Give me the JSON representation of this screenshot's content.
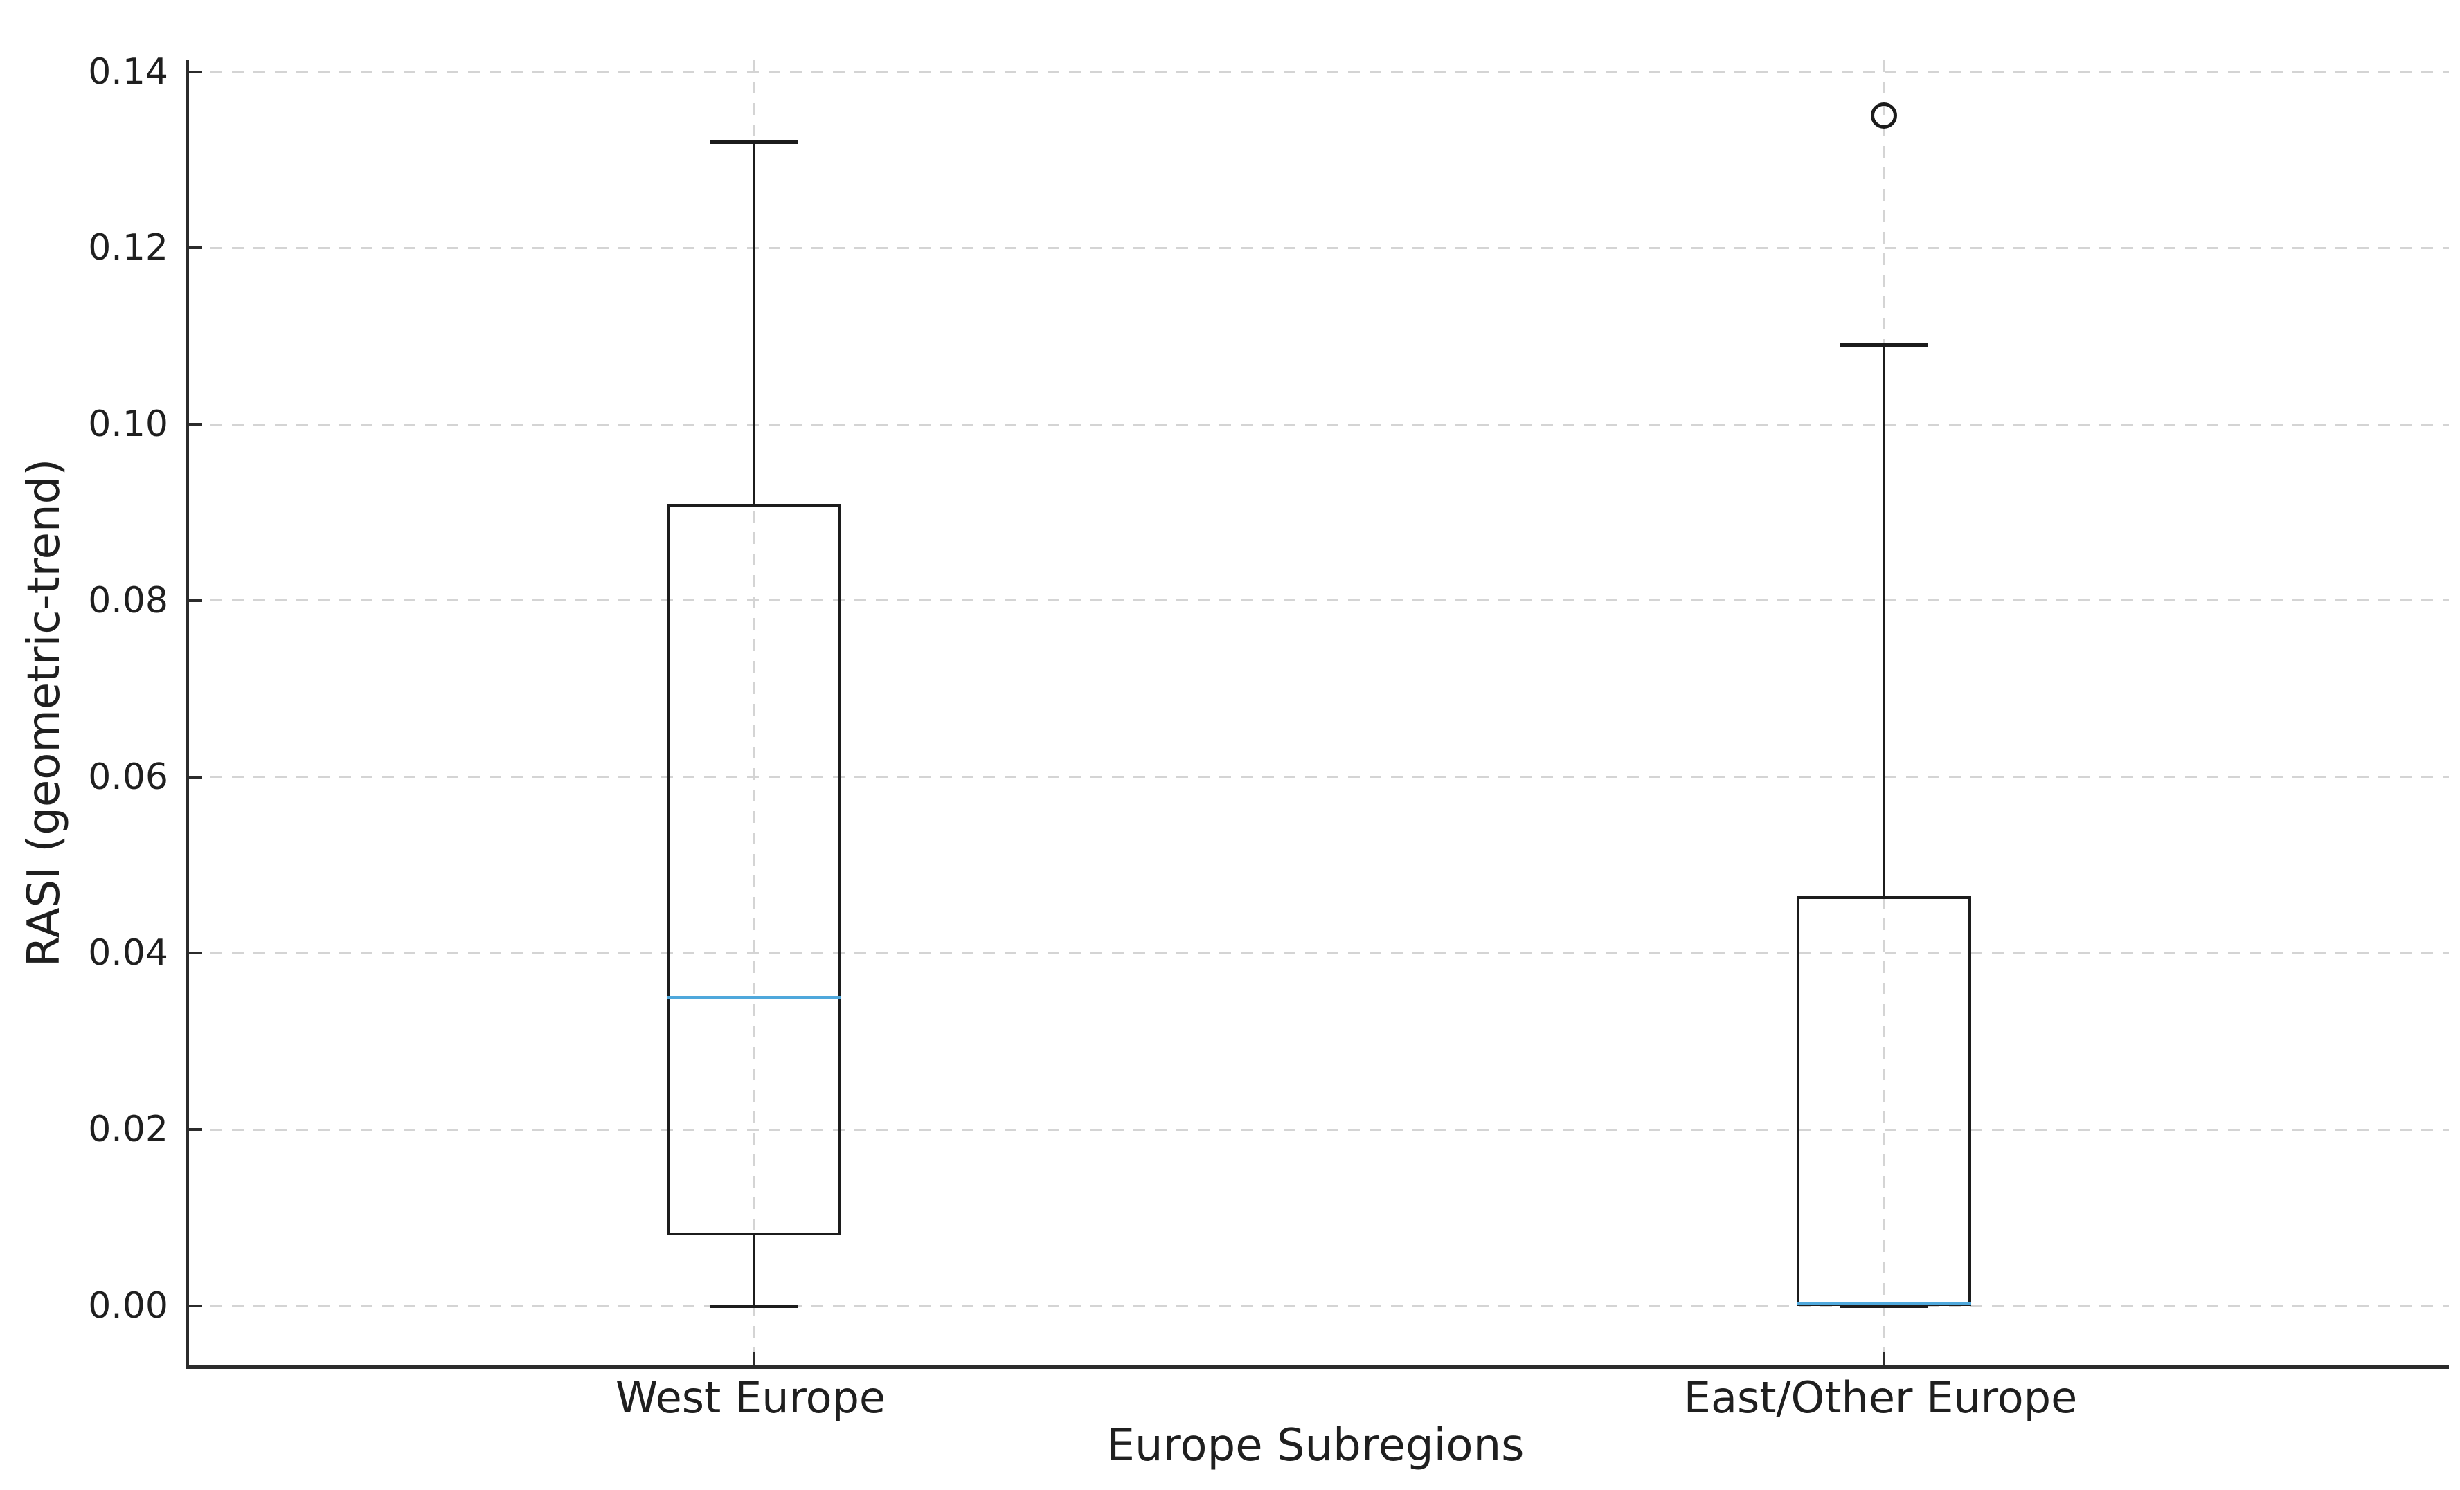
{
  "chart_data": {
    "type": "boxplot",
    "title": "",
    "xlabel": "Europe Subregions",
    "ylabel": "RASI (geometric-trend)",
    "categories": [
      "West Europe",
      "East/Other Europe"
    ],
    "positions": [
      1,
      2
    ],
    "xlim": [
      0.5,
      2.5
    ],
    "ylim": [
      -0.00675,
      0.1413
    ],
    "yticks": [
      0.0,
      0.02,
      0.04,
      0.06,
      0.08,
      0.1,
      0.12,
      0.14
    ],
    "ytick_labels": [
      "0.00",
      "0.02",
      "0.04",
      "0.06",
      "0.08",
      "0.10",
      "0.12",
      "0.14"
    ],
    "grid": {
      "visible": true,
      "axis": "both",
      "linestyle": "dashed"
    },
    "legend": null,
    "box_width_units": 0.155,
    "cap_width_units": 0.078,
    "series": [
      {
        "name": "West Europe",
        "whisker_low": 0.0,
        "q1": 0.008,
        "median": 0.035,
        "q3": 0.091,
        "whisker_high": 0.132,
        "outliers": []
      },
      {
        "name": "East/Other Europe",
        "whisker_low": 0.0,
        "q1": 0.0,
        "median": 0.0003,
        "q3": 0.0465,
        "whisker_high": 0.109,
        "outliers": [
          0.135
        ]
      }
    ]
  },
  "style": {
    "median_color": "#4fa8dc",
    "box_line_color": "#1c1c1c",
    "spine_color": "#2b2b2b",
    "grid_color": "#d4d4d4",
    "text_color": "#1f1f1f",
    "background": "#ffffff"
  }
}
